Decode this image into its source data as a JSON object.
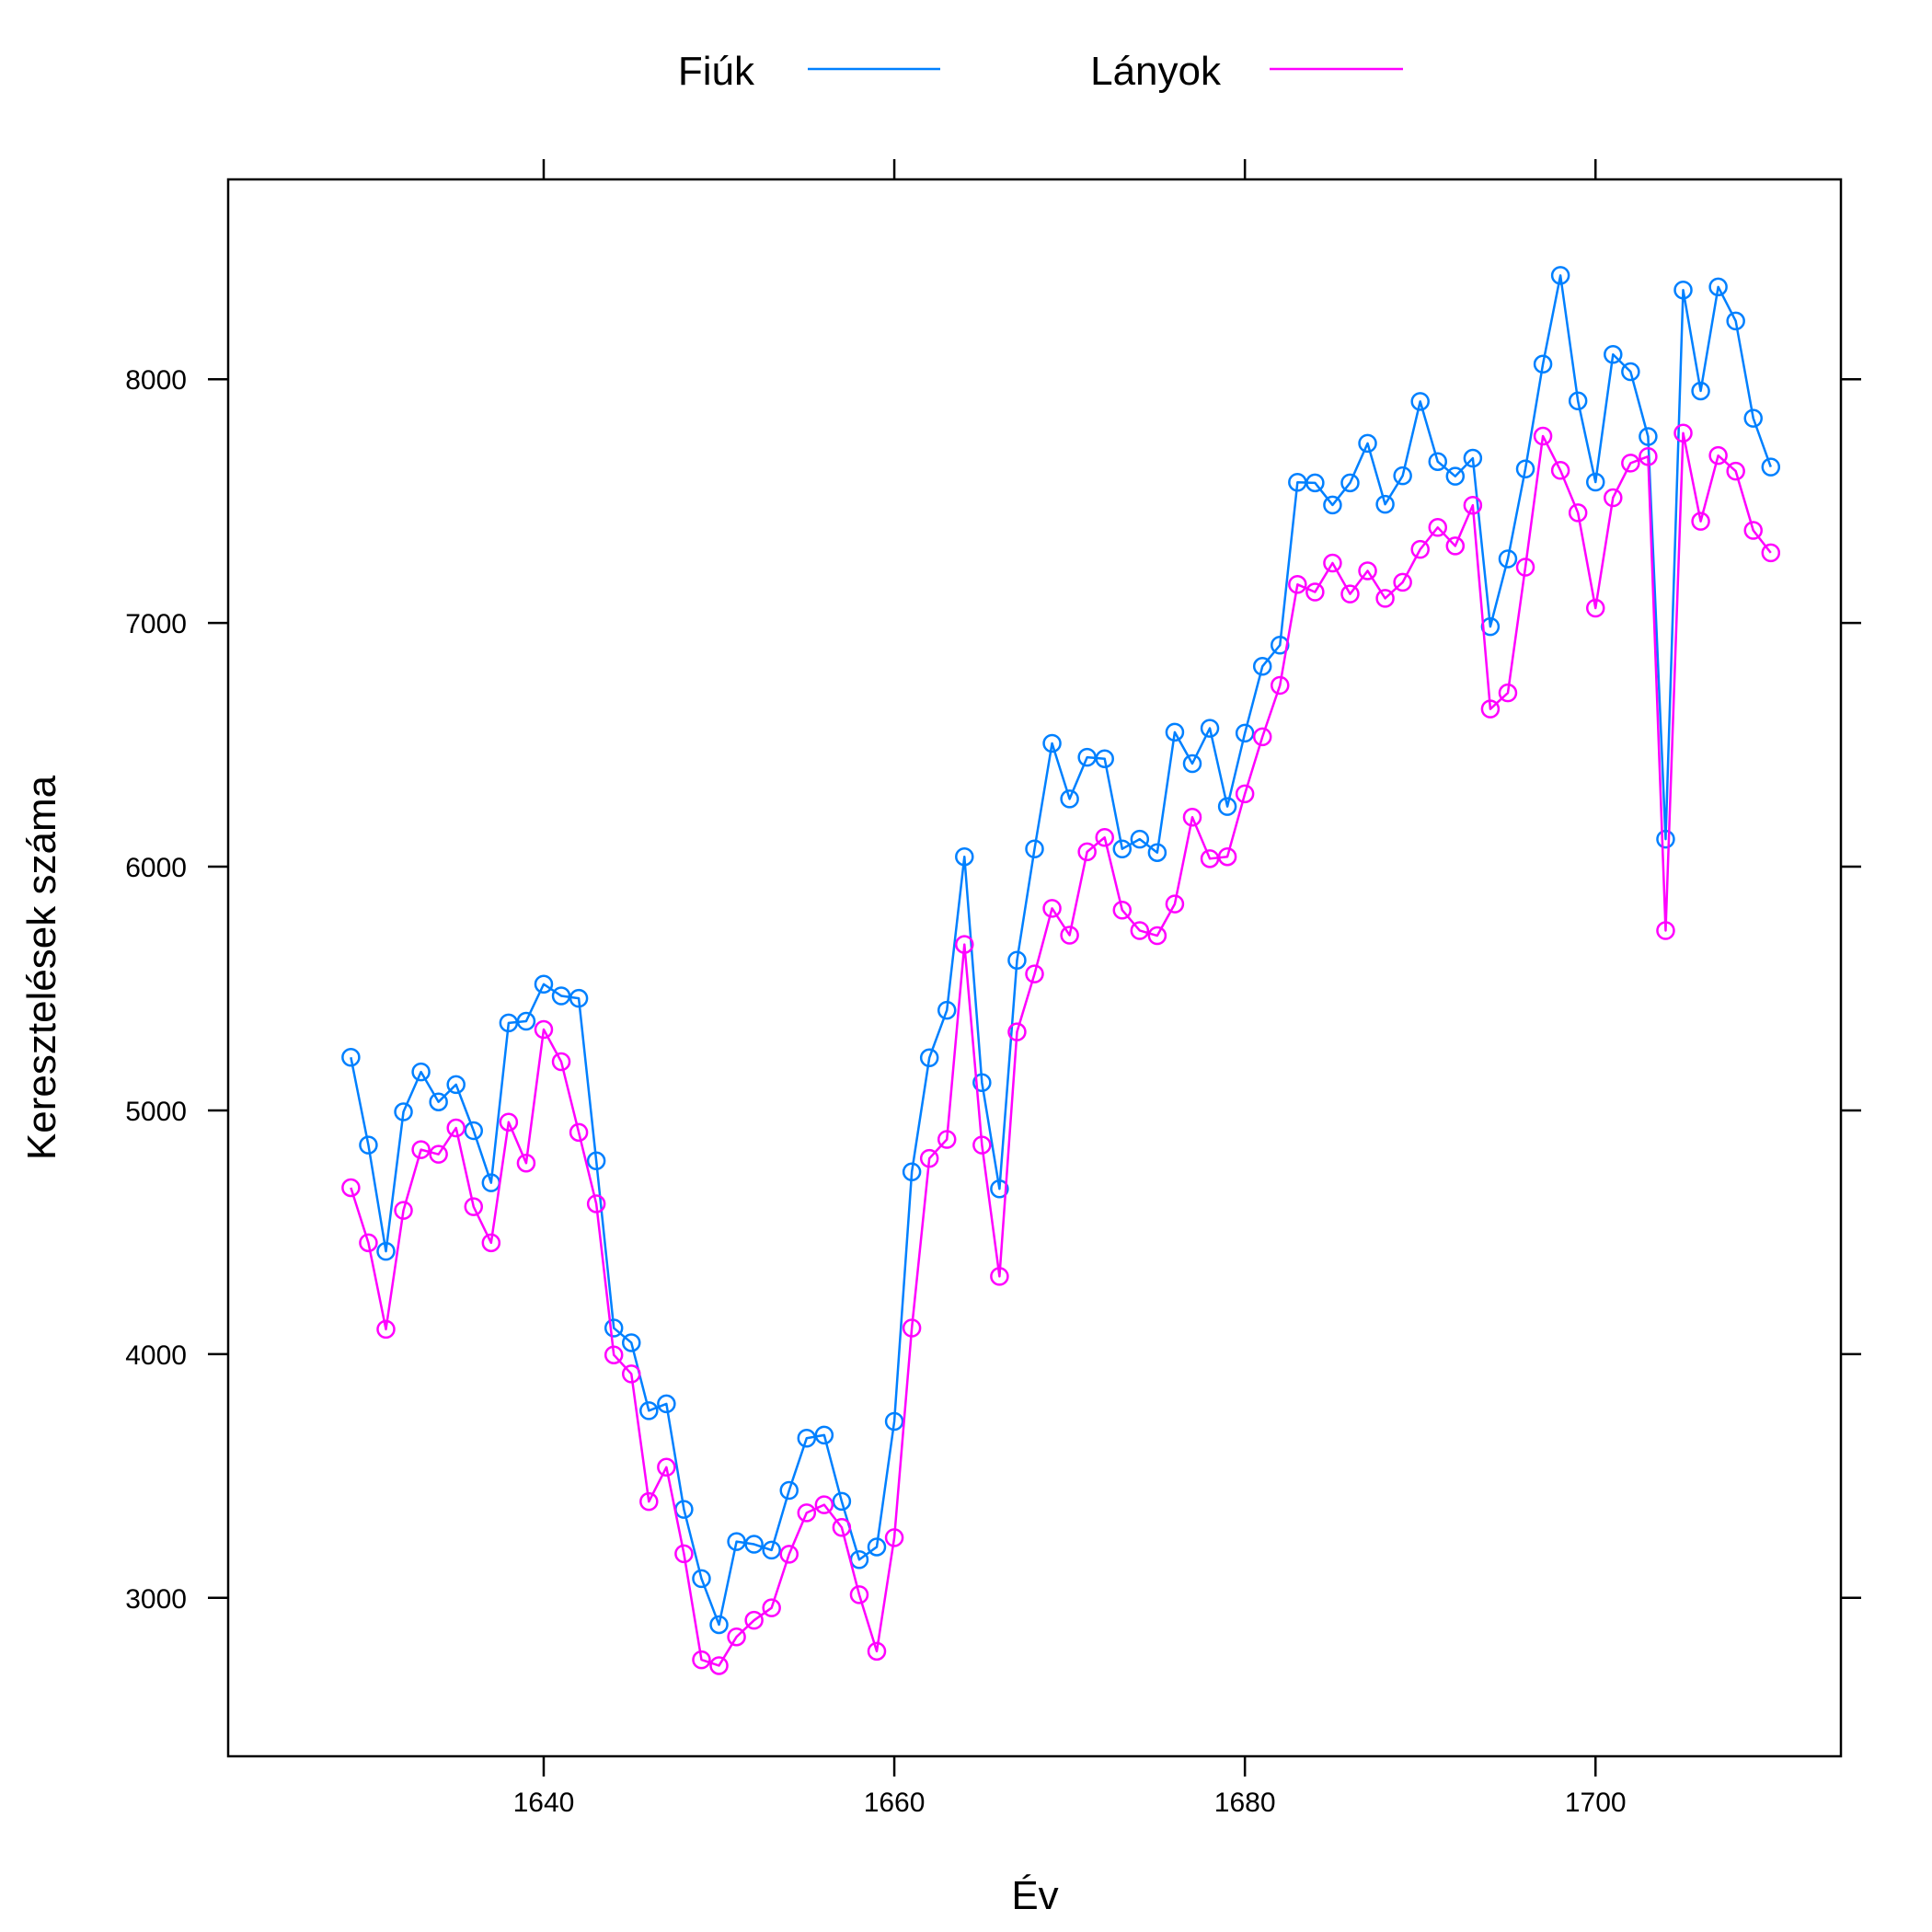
{
  "chart_data": {
    "type": "line",
    "xlabel": "Év",
    "ylabel": "Keresztelések száma",
    "xlim": [
      1622,
      1714
    ],
    "ylim": [
      2350,
      8820
    ],
    "x_ticks": [
      1640,
      1660,
      1680,
      1700
    ],
    "y_ticks": [
      3000,
      4000,
      5000,
      6000,
      7000,
      8000
    ],
    "legend_position": "top",
    "grid": false,
    "markers": "open-circle",
    "x": [
      1629,
      1630,
      1631,
      1632,
      1633,
      1634,
      1635,
      1636,
      1637,
      1638,
      1639,
      1640,
      1641,
      1642,
      1643,
      1644,
      1645,
      1646,
      1647,
      1648,
      1649,
      1650,
      1651,
      1652,
      1653,
      1654,
      1655,
      1656,
      1657,
      1658,
      1659,
      1660,
      1661,
      1662,
      1663,
      1664,
      1665,
      1666,
      1667,
      1668,
      1669,
      1670,
      1671,
      1672,
      1673,
      1674,
      1675,
      1676,
      1677,
      1678,
      1679,
      1680,
      1681,
      1682,
      1683,
      1684,
      1685,
      1686,
      1687,
      1688,
      1689,
      1690,
      1691,
      1692,
      1693,
      1694,
      1695,
      1696,
      1697,
      1698,
      1699,
      1700,
      1701,
      1702,
      1703,
      1704,
      1705,
      1706,
      1707,
      1708,
      1709,
      1710
    ],
    "series": [
      {
        "name": "Fiúk",
        "color": "#0080ff",
        "values": [
          5218,
          4858,
          4422,
          4994,
          5158,
          5035,
          5106,
          4917,
          4703,
          5359,
          5366,
          5518,
          5470,
          5460,
          4793,
          4107,
          4047,
          3768,
          3796,
          3363,
          3079,
          2890,
          3231,
          3220,
          3196,
          3441,
          3655,
          3668,
          3396,
          3157,
          3209,
          3724,
          4748,
          5216,
          5411,
          6041,
          5114,
          4678,
          5616,
          6073,
          6506,
          6278,
          6449,
          6443,
          6073,
          6113,
          6058,
          6552,
          6423,
          6568,
          6247,
          6548,
          6822,
          6909,
          7577,
          7575,
          7484,
          7575,
          7737,
          7487,
          7604,
          7909,
          7662,
          7602,
          7676,
          6985,
          7263,
          7632,
          8062,
          8426,
          7911,
          7578,
          8102,
          8031,
          7765,
          6113,
          8366,
          7952,
          8379,
          8239,
          7840,
          7640
        ]
      },
      {
        "name": "Lányok",
        "color": "#ff00ff",
        "values": [
          4683,
          4457,
          4102,
          4590,
          4839,
          4820,
          4928,
          4605,
          4457,
          4952,
          4784,
          5332,
          5200,
          4910,
          4617,
          3997,
          3919,
          3395,
          3536,
          3181,
          2746,
          2722,
          2840,
          2908,
          2959,
          3179,
          3349,
          3382,
          3289,
          3013,
          2781,
          3247,
          4107,
          4803,
          4881,
          5681,
          4858,
          4319,
          5322,
          5560,
          5829,
          5719,
          6061,
          6120,
          5822,
          5738,
          5717,
          5847,
          6203,
          6033,
          6041,
          6299,
          6533,
          6744,
          7158,
          7127,
          7246,
          7119,
          7214,
          7101,
          7167,
          7302,
          7392,
          7316,
          7483,
          6647,
          6713,
          7229,
          7767,
          7626,
          7452,
          7061,
          7514,
          7656,
          7683,
          5738,
          7779,
          7417,
          7687,
          7623,
          7380,
          7288
        ]
      }
    ]
  }
}
